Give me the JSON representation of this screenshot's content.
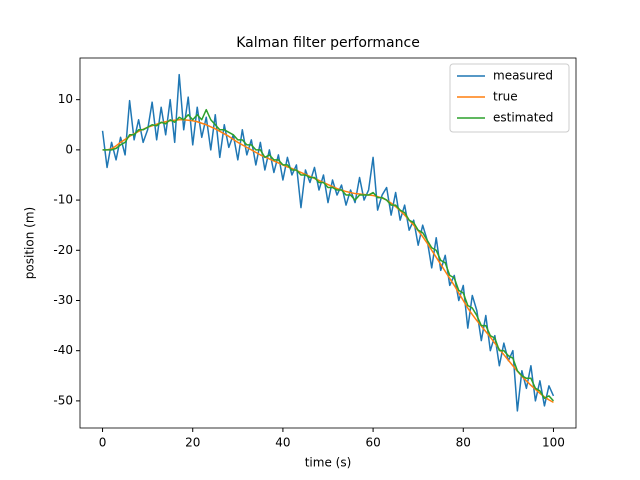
{
  "chart_data": {
    "type": "line",
    "title": "Kalman filter performance",
    "x_label": "time (s)",
    "y_label": "position (m)",
    "x": [
      0,
      1,
      2,
      3,
      4,
      5,
      6,
      7,
      8,
      9,
      10,
      11,
      12,
      13,
      14,
      15,
      16,
      17,
      18,
      19,
      20,
      21,
      22,
      23,
      24,
      25,
      26,
      27,
      28,
      29,
      30,
      31,
      32,
      33,
      34,
      35,
      36,
      37,
      38,
      39,
      40,
      41,
      42,
      43,
      44,
      45,
      46,
      47,
      48,
      49,
      50,
      51,
      52,
      53,
      54,
      55,
      56,
      57,
      58,
      59,
      60,
      61,
      62,
      63,
      64,
      65,
      66,
      67,
      68,
      69,
      70,
      71,
      72,
      73,
      74,
      75,
      76,
      77,
      78,
      79,
      80,
      81,
      82,
      83,
      84,
      85,
      86,
      87,
      88,
      89,
      90,
      91,
      92,
      93,
      94,
      95,
      96,
      97,
      98,
      99,
      100
    ],
    "series": [
      {
        "name": "measured",
        "color": "#1f77b4",
        "values": [
          3.8,
          -3.5,
          1.5,
          -2,
          2.5,
          -1,
          9.8,
          2,
          6,
          1.5,
          4,
          9.5,
          2,
          8.5,
          3,
          10,
          1.5,
          15,
          4,
          10.5,
          1,
          8.5,
          2.5,
          6.5,
          0,
          7,
          -1.5,
          5,
          0.5,
          3,
          -2,
          4,
          -1,
          2,
          -3,
          1.5,
          -4,
          0,
          -4.5,
          -1,
          -6,
          -1.5,
          -5,
          -3,
          -11.5,
          -4,
          -6.5,
          -3.5,
          -8,
          -5,
          -10.5,
          -6,
          -9,
          -7,
          -11,
          -8,
          -10.5,
          -5.5,
          -10,
          -8,
          -1.5,
          -12,
          -9,
          -7.5,
          -13,
          -8.5,
          -14,
          -11,
          -16,
          -14,
          -19,
          -15,
          -18,
          -23.5,
          -17.5,
          -24,
          -21,
          -27,
          -25,
          -30,
          -27,
          -35.5,
          -29,
          -32,
          -38,
          -33,
          -40,
          -37,
          -43,
          -38.5,
          -42,
          -40,
          -52,
          -44,
          -47.5,
          -43,
          -50,
          -46,
          -51,
          -47,
          -49
        ]
      },
      {
        "name": "true",
        "color": "#ff7f0e",
        "values": [
          0,
          0,
          0.2,
          0.8,
          1.5,
          2.1,
          2.7,
          3.2,
          3.7,
          4.1,
          4.5,
          4.8,
          5.1,
          5.4,
          5.6,
          5.8,
          5.9,
          6,
          6,
          5.9,
          5.8,
          5.6,
          5.3,
          5,
          4.6,
          4.2,
          3.7,
          3.2,
          2.7,
          2.1,
          1.5,
          1,
          0.5,
          0,
          -0.5,
          -1,
          -1.4,
          -1.8,
          -2.2,
          -2.6,
          -3,
          -3.4,
          -3.7,
          -4.1,
          -4.5,
          -4.9,
          -5.3,
          -5.7,
          -6.1,
          -6.5,
          -6.9,
          -7.3,
          -7.7,
          -8,
          -8.3,
          -8.5,
          -8.7,
          -8.8,
          -8.9,
          -9,
          -9.1,
          -9.3,
          -9.6,
          -10,
          -10.6,
          -11.3,
          -12.1,
          -13,
          -14,
          -15,
          -16.1,
          -17.3,
          -18.6,
          -20,
          -21.4,
          -22.8,
          -24.2,
          -25.6,
          -27,
          -28.5,
          -30,
          -31.5,
          -32.8,
          -34,
          -35.1,
          -36.2,
          -37.3,
          -38.5,
          -39.7,
          -40.8,
          -41.9,
          -43,
          -44.1,
          -45.1,
          -46,
          -46.9,
          -47.7,
          -48.5,
          -49.2,
          -49.8,
          -50.3
        ]
      },
      {
        "name": "estimated",
        "color": "#2ca02c",
        "values": [
          0,
          0,
          0,
          0.3,
          1,
          1.5,
          3,
          3,
          4,
          4,
          4.5,
          5,
          4.8,
          5.5,
          5.2,
          6,
          5.5,
          6.5,
          6,
          7,
          6,
          7,
          6,
          8,
          6,
          5,
          4,
          4,
          3.5,
          3,
          2,
          2,
          1,
          1,
          0,
          0,
          -1.5,
          -1,
          -2,
          -2,
          -3,
          -3,
          -4,
          -4,
          -5,
          -5,
          -5.5,
          -5.5,
          -6.5,
          -6.5,
          -7.5,
          -7.5,
          -8,
          -8,
          -9,
          -9,
          -10,
          -9,
          -9,
          -9,
          -8.5,
          -9.5,
          -9.5,
          -10,
          -11,
          -11,
          -12,
          -12.5,
          -14,
          -14.5,
          -16,
          -16.5,
          -18,
          -19.5,
          -20,
          -22,
          -22.5,
          -25,
          -25.5,
          -28,
          -28.5,
          -31,
          -31.5,
          -33,
          -35,
          -35,
          -37,
          -37.5,
          -40,
          -40,
          -41,
          -41.5,
          -44,
          -45,
          -45.5,
          -45.5,
          -47.5,
          -48,
          -49.5,
          -49,
          -50
        ]
      }
    ],
    "xlim": [
      -5,
      105
    ],
    "ylim": [
      -55.4,
      18.3
    ],
    "xticks": [
      0,
      20,
      40,
      60,
      80,
      100
    ],
    "yticks": [
      -50,
      -40,
      -30,
      -20,
      -10,
      0,
      10
    ],
    "legend": "upper right"
  }
}
